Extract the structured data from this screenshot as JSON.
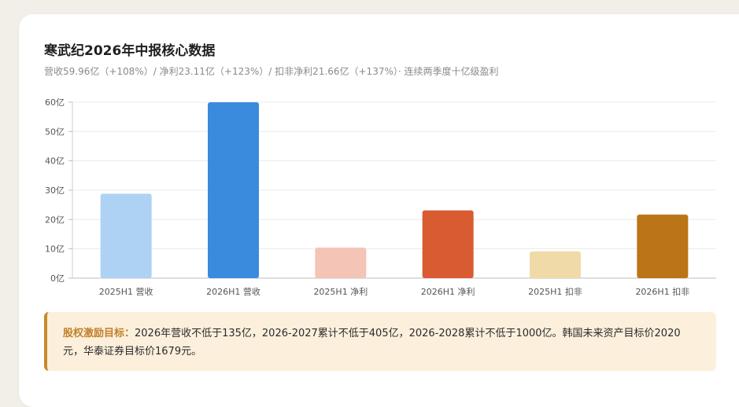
{
  "header": {
    "title": "寒武纪2026年中报核心数据",
    "subtitle": "营收59.96亿（+108%）/ 净利23.11亿（+123%）/ 扣非净利21.66亿（+137%）· 连续两季度十亿级盈利"
  },
  "chart_data": {
    "type": "bar",
    "categories": [
      "2025H1 营收",
      "2026H1 营收",
      "2025H1 净利",
      "2026H1 净利",
      "2025H1 扣非",
      "2026H1 扣非"
    ],
    "values": [
      28.8,
      59.96,
      10.4,
      23.11,
      9.1,
      21.66
    ],
    "colors": [
      "#aed2f3",
      "#3a8ade",
      "#f4c4b6",
      "#d95b32",
      "#f0dba8",
      "#bb7516"
    ],
    "ylim": [
      0,
      60
    ],
    "yticks": [
      "0亿",
      "10亿",
      "20亿",
      "30亿",
      "40亿",
      "50亿",
      "60亿"
    ],
    "grid": true
  },
  "note": {
    "label": "股权激励目标：",
    "text": "2026年营收不低于135亿，2026-2027累计不低于405亿，2026-2028累计不低于1000亿。韩国未来资产目标价2020元，华泰证券目标价1679元。"
  }
}
